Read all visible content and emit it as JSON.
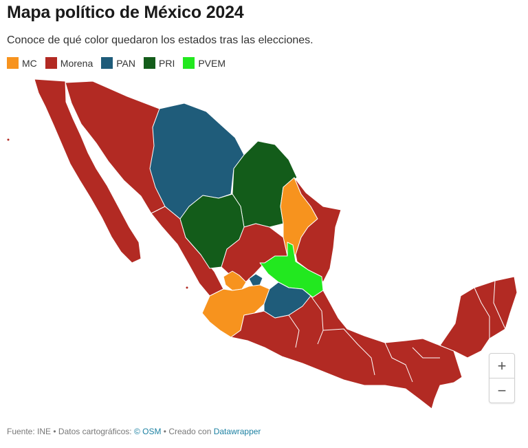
{
  "header": {
    "title": "Mapa político de México 2024",
    "subtitle": "Conoce de qué color quedaron los estados tras las elecciones."
  },
  "legend": [
    {
      "label": "MC",
      "color": "#f7931e"
    },
    {
      "label": "Morena",
      "color": "#b22a23"
    },
    {
      "label": "PAN",
      "color": "#1f5c7a"
    },
    {
      "label": "PRI",
      "color": "#135c1a"
    },
    {
      "label": "PVEM",
      "color": "#22e81f"
    }
  ],
  "map": {
    "borders_color": "#ffffff",
    "regions": [
      {
        "state": "Baja California",
        "party": "Morena"
      },
      {
        "state": "Baja California Sur",
        "party": "Morena"
      },
      {
        "state": "Sonora",
        "party": "Morena"
      },
      {
        "state": "Chihuahua",
        "party": "PAN"
      },
      {
        "state": "Coahuila",
        "party": "PRI"
      },
      {
        "state": "Nuevo León",
        "party": "MC"
      },
      {
        "state": "Tamaulipas",
        "party": "Morena"
      },
      {
        "state": "Sinaloa",
        "party": "Morena"
      },
      {
        "state": "Durango",
        "party": "PRI"
      },
      {
        "state": "Zacatecas",
        "party": "Morena"
      },
      {
        "state": "San Luis Potosí",
        "party": "PVEM"
      },
      {
        "state": "Nayarit",
        "party": "Morena"
      },
      {
        "state": "Aguascalientes",
        "party": "PAN"
      },
      {
        "state": "Jalisco",
        "party": "MC"
      },
      {
        "state": "Guanajuato",
        "party": "PAN"
      },
      {
        "state": "Querétaro",
        "party": "PAN"
      },
      {
        "state": "Yucatán Peninsula",
        "party": "Morena"
      },
      {
        "state": "Southern states",
        "party": "Morena"
      }
    ]
  },
  "zoom": {
    "in_label": "+",
    "out_label": "−"
  },
  "footer": {
    "source": "Fuente: INE • Datos cartográficos: ",
    "osm": "© OSM",
    "created": " • Creado con ",
    "tool": "Datawrapper"
  }
}
